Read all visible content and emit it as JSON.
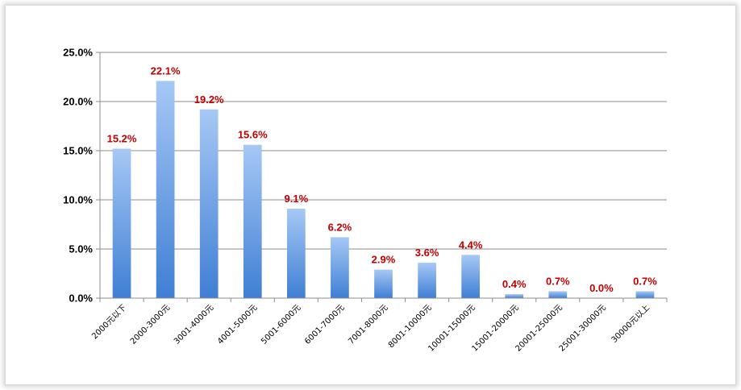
{
  "chart_data": {
    "type": "bar",
    "categories": [
      "2000元以下",
      "2000-3000元",
      "3001-4000元",
      "4001-5000元",
      "5001-6000元",
      "6001-7000元",
      "7001-8000元",
      "8001-10000元",
      "10001-15000元",
      "15001-20000元",
      "20001-25000元",
      "25001-30000元",
      "30000元以上"
    ],
    "values": [
      15.2,
      22.1,
      19.2,
      15.6,
      9.1,
      6.2,
      2.9,
      3.6,
      4.4,
      0.4,
      0.7,
      0.0,
      0.7
    ],
    "data_labels": [
      "15.2%",
      "22.1%",
      "19.2%",
      "15.6%",
      "9.1%",
      "6.2%",
      "2.9%",
      "3.6%",
      "4.4%",
      "0.4%",
      "0.7%",
      "0.0%",
      "0.7%"
    ],
    "ylim": [
      0,
      25
    ],
    "yticks": [
      0,
      5,
      10,
      15,
      20,
      25
    ],
    "ytick_labels": [
      "0.0%",
      "5.0%",
      "10.0%",
      "15.0%",
      "20.0%",
      "25.0%"
    ],
    "grid": true,
    "bar_color_top": "#a6c8f5",
    "bar_color_bottom": "#3f7fd4",
    "label_color": "#c00000"
  }
}
